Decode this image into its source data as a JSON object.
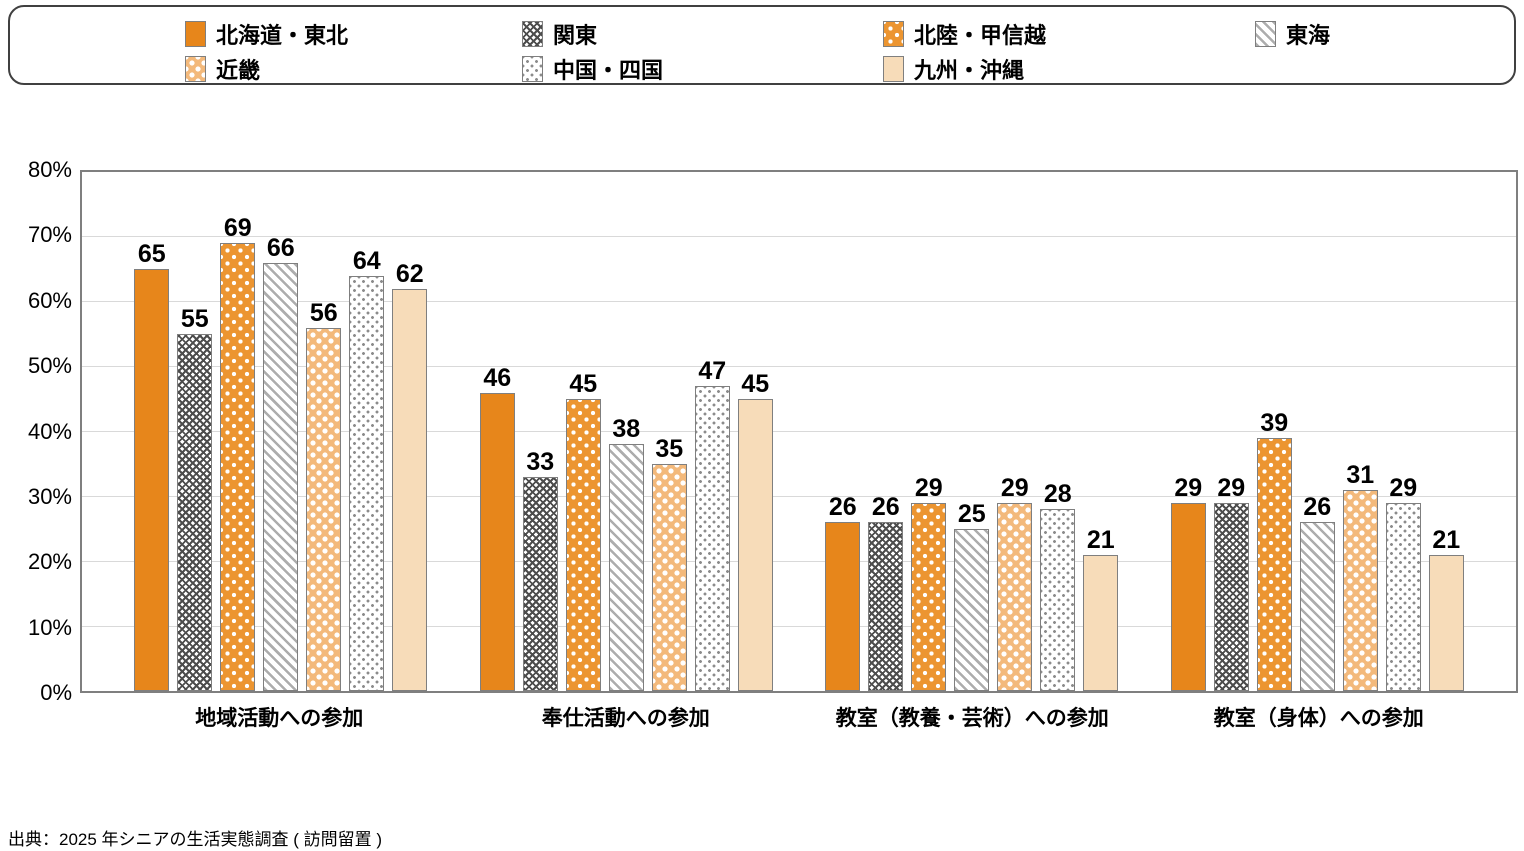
{
  "chart_data": {
    "type": "bar",
    "categories": [
      "地域活動への参加",
      "奉仕活動への参加",
      "教室（教養・芸術）への参加",
      "教室（身体）への参加"
    ],
    "series": [
      {
        "name": "北海道・東北",
        "pattern": "solid-orange",
        "values": [
          65,
          46,
          26,
          29
        ]
      },
      {
        "name": "関東",
        "pattern": "dark-gray-crosshatch",
        "values": [
          55,
          33,
          26,
          29
        ]
      },
      {
        "name": "北陸・甲信越",
        "pattern": "white-dots-on-orange",
        "values": [
          69,
          45,
          29,
          39
        ]
      },
      {
        "name": "東海",
        "pattern": "gray-diagonal-stripes",
        "values": [
          66,
          38,
          25,
          26
        ]
      },
      {
        "name": "近畿",
        "pattern": "white-dots-on-light-orange",
        "values": [
          56,
          35,
          29,
          31
        ]
      },
      {
        "name": "中国・四国",
        "pattern": "gray-dots-on-white",
        "values": [
          64,
          47,
          28,
          29
        ]
      },
      {
        "name": "九州・沖縄",
        "pattern": "solid-pale-orange",
        "values": [
          62,
          45,
          21,
          21
        ]
      }
    ],
    "title": "",
    "xlabel": "",
    "ylabel": "",
    "ylim": [
      0,
      80
    ],
    "yticks": [
      "0%",
      "10%",
      "20%",
      "30%",
      "40%",
      "50%",
      "60%",
      "70%",
      "80%"
    ],
    "grid": true,
    "value_labels": true,
    "legend_position": "top"
  },
  "colors": {
    "orange": "#E7861B",
    "dot_orange": "#EC9531",
    "light_orange": "#F3B97B",
    "pale_orange": "#F7DCB9",
    "dark_hatch_gray": "#4D4D4D",
    "stripe_gray": "#ADADAD",
    "dot_gray": "#8C8C8C",
    "bar_border": "#7F7F7F",
    "gridline": "#D9D9D9",
    "legend_border": "#404040"
  },
  "source": "出典：2025 年シニアの生活実態調査 ( 訪問留置 )"
}
